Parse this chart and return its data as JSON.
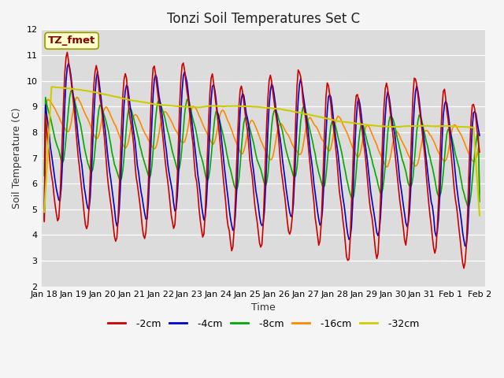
{
  "title": "Tonzi Soil Temperatures Set C",
  "xlabel": "Time",
  "ylabel": "Soil Temperature (C)",
  "ylim": [
    2.0,
    12.0
  ],
  "yticks": [
    2.0,
    3.0,
    4.0,
    5.0,
    6.0,
    7.0,
    8.0,
    9.0,
    10.0,
    11.0,
    12.0
  ],
  "xtick_labels": [
    "Jan 18",
    "Jan 19",
    "Jan 20",
    "Jan 21",
    "Jan 22",
    "Jan 23",
    "Jan 24",
    "Jan 25",
    "Jan 26",
    "Jan 27",
    "Jan 28",
    "Jan 29",
    "Jan 30",
    "Jan 31",
    "Feb 1",
    "Feb 2"
  ],
  "annotation_text": "TZ_fmet",
  "annotation_bg": "#ffffcc",
  "annotation_border": "#999900",
  "annotation_text_color": "#880000",
  "series": {
    "-2cm": {
      "color": "#cc0000",
      "linewidth": 1.2
    },
    "-4cm": {
      "color": "#0000cc",
      "linewidth": 1.2
    },
    "-8cm": {
      "color": "#00aa00",
      "linewidth": 1.2
    },
    "-16cm": {
      "color": "#ff8800",
      "linewidth": 1.2
    },
    "-32cm": {
      "color": "#cccc00",
      "linewidth": 1.5
    }
  },
  "fig_bg": "#f5f5f5",
  "plot_bg": "#dcdcdc",
  "grid_color": "#ffffff",
  "title_fontsize": 12,
  "axis_label_fontsize": 9,
  "tick_fontsize": 8,
  "legend_fontsize": 9
}
